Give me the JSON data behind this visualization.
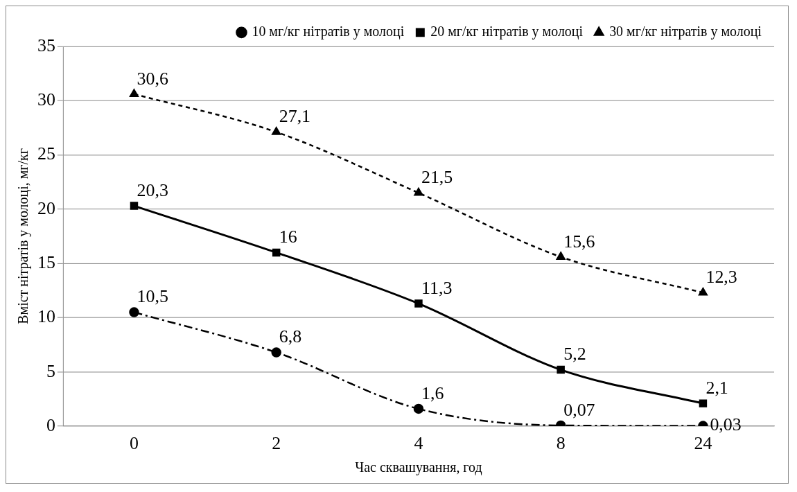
{
  "chart_data": {
    "type": "line",
    "xlabel": "Час сквашування, год",
    "ylabel": "Вміст нітратів у молоці, мг/кг",
    "categories": [
      "0",
      "2",
      "4",
      "8",
      "24"
    ],
    "ylim": [
      0,
      35
    ],
    "yticks": [
      0,
      5,
      10,
      15,
      20,
      25,
      30,
      35
    ],
    "grid": "y",
    "legend": "top right",
    "series": [
      {
        "name": "10 мг/кг нітратів у молоці",
        "color": "#000000",
        "values": [
          10.5,
          6.8,
          1.6,
          0.07,
          0.03
        ],
        "value_labels": [
          "10,5",
          "6,8",
          "1,6",
          "0,07",
          "0,03"
        ],
        "marker": "circle",
        "line_style": "dashed"
      },
      {
        "name": "20 мг/кг нітратів у молоці",
        "color": "#000000",
        "values": [
          20.3,
          16,
          11.3,
          5.2,
          2.1
        ],
        "value_labels": [
          "20,3",
          "16",
          "11,3",
          "5,2",
          "2,1"
        ],
        "marker": "square",
        "line_style": "solid"
      },
      {
        "name": "30 мг/кг нітратів у молоці",
        "color": "#000000",
        "values": [
          30.6,
          27.1,
          21.5,
          15.6,
          12.3
        ],
        "value_labels": [
          "30,6",
          "27,1",
          "21,5",
          "15,6",
          "12,3"
        ],
        "marker": "triangle",
        "line_style": "dotted"
      }
    ]
  }
}
